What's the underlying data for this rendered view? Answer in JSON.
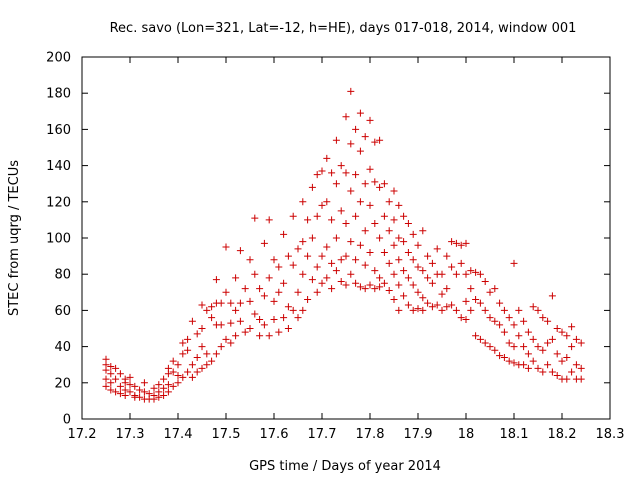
{
  "chart_data": {
    "type": "scatter",
    "title": "Rec. savo (Lon=321, Lat=-12, h=HE), days 017-018, 2014, window 001",
    "xlabel": "GPS time / Days of year 2014",
    "ylabel": "STEC from uqrg / TECUs",
    "xlim": [
      17.2,
      18.3
    ],
    "ylim": [
      0,
      200
    ],
    "xticks": [
      "17.2",
      "17.3",
      "17.4",
      "17.5",
      "17.6",
      "17.7",
      "17.8",
      "17.9",
      "18",
      "18.1",
      "18.2",
      "18.3"
    ],
    "yticks": [
      "0",
      "20",
      "40",
      "60",
      "80",
      "100",
      "120",
      "140",
      "160",
      "180",
      "200"
    ],
    "grid": false,
    "legend": "none",
    "marker": "+",
    "color": "#cc0000",
    "points": [
      [
        17.25,
        33
      ],
      [
        17.25,
        30
      ],
      [
        17.25,
        27
      ],
      [
        17.25,
        22
      ],
      [
        17.25,
        18
      ],
      [
        17.26,
        29
      ],
      [
        17.26,
        25
      ],
      [
        17.26,
        20
      ],
      [
        17.26,
        16
      ],
      [
        17.27,
        28
      ],
      [
        17.27,
        22
      ],
      [
        17.27,
        15
      ],
      [
        17.28,
        25
      ],
      [
        17.28,
        18
      ],
      [
        17.28,
        14
      ],
      [
        17.29,
        22
      ],
      [
        17.29,
        20
      ],
      [
        17.29,
        16
      ],
      [
        17.29,
        13
      ],
      [
        17.3,
        23
      ],
      [
        17.3,
        19
      ],
      [
        17.3,
        15
      ],
      [
        17.31,
        18
      ],
      [
        17.31,
        13
      ],
      [
        17.31,
        12
      ],
      [
        17.32,
        16
      ],
      [
        17.32,
        12
      ],
      [
        17.33,
        20
      ],
      [
        17.33,
        15
      ],
      [
        17.33,
        11
      ],
      [
        17.34,
        14
      ],
      [
        17.34,
        11
      ],
      [
        17.35,
        17
      ],
      [
        17.35,
        13
      ],
      [
        17.35,
        11
      ],
      [
        17.36,
        19
      ],
      [
        17.36,
        15
      ],
      [
        17.36,
        12
      ],
      [
        17.37,
        22
      ],
      [
        17.37,
        17
      ],
      [
        17.37,
        13
      ],
      [
        17.38,
        28
      ],
      [
        17.38,
        25
      ],
      [
        17.38,
        19
      ],
      [
        17.38,
        15
      ],
      [
        17.39,
        32
      ],
      [
        17.39,
        26
      ],
      [
        17.39,
        18
      ],
      [
        17.4,
        30
      ],
      [
        17.4,
        24
      ],
      [
        17.4,
        20
      ],
      [
        17.41,
        42
      ],
      [
        17.41,
        36
      ],
      [
        17.41,
        23
      ],
      [
        17.42,
        44
      ],
      [
        17.42,
        38
      ],
      [
        17.42,
        26
      ],
      [
        17.43,
        54
      ],
      [
        17.43,
        30
      ],
      [
        17.43,
        23
      ],
      [
        17.44,
        47
      ],
      [
        17.44,
        34
      ],
      [
        17.44,
        26
      ],
      [
        17.45,
        50
      ],
      [
        17.45,
        40
      ],
      [
        17.45,
        28
      ],
      [
        17.45,
        63
      ],
      [
        17.46,
        60
      ],
      [
        17.46,
        36
      ],
      [
        17.46,
        30
      ],
      [
        17.47,
        56
      ],
      [
        17.47,
        62
      ],
      [
        17.47,
        32
      ],
      [
        17.48,
        77
      ],
      [
        17.48,
        64
      ],
      [
        17.48,
        52
      ],
      [
        17.48,
        36
      ],
      [
        17.49,
        52
      ],
      [
        17.49,
        64
      ],
      [
        17.49,
        40
      ],
      [
        17.5,
        95
      ],
      [
        17.5,
        70
      ],
      [
        17.5,
        44
      ],
      [
        17.51,
        64
      ],
      [
        17.51,
        53
      ],
      [
        17.51,
        42
      ],
      [
        17.52,
        78
      ],
      [
        17.52,
        60
      ],
      [
        17.52,
        46
      ],
      [
        17.53,
        93
      ],
      [
        17.53,
        64
      ],
      [
        17.53,
        54
      ],
      [
        17.54,
        72
      ],
      [
        17.54,
        48
      ],
      [
        17.55,
        88
      ],
      [
        17.55,
        65
      ],
      [
        17.55,
        50
      ],
      [
        17.56,
        111
      ],
      [
        17.56,
        80
      ],
      [
        17.56,
        58
      ],
      [
        17.57,
        72
      ],
      [
        17.57,
        55
      ],
      [
        17.57,
        46
      ],
      [
        17.58,
        97
      ],
      [
        17.58,
        68
      ],
      [
        17.58,
        52
      ],
      [
        17.59,
        110
      ],
      [
        17.59,
        78
      ],
      [
        17.59,
        46
      ],
      [
        17.6,
        88
      ],
      [
        17.6,
        65
      ],
      [
        17.6,
        55
      ],
      [
        17.61,
        84
      ],
      [
        17.61,
        70
      ],
      [
        17.61,
        48
      ],
      [
        17.62,
        102
      ],
      [
        17.62,
        75
      ],
      [
        17.62,
        56
      ],
      [
        17.63,
        90
      ],
      [
        17.63,
        62
      ],
      [
        17.63,
        50
      ],
      [
        17.64,
        112
      ],
      [
        17.64,
        85
      ],
      [
        17.64,
        60
      ],
      [
        17.65,
        94
      ],
      [
        17.65,
        70
      ],
      [
        17.65,
        56
      ],
      [
        17.66,
        120
      ],
      [
        17.66,
        98
      ],
      [
        17.66,
        80
      ],
      [
        17.66,
        60
      ],
      [
        17.67,
        110
      ],
      [
        17.67,
        90
      ],
      [
        17.67,
        66
      ],
      [
        17.68,
        128
      ],
      [
        17.68,
        100
      ],
      [
        17.68,
        77
      ],
      [
        17.69,
        135
      ],
      [
        17.69,
        112
      ],
      [
        17.69,
        84
      ],
      [
        17.69,
        70
      ],
      [
        17.7,
        137
      ],
      [
        17.7,
        118
      ],
      [
        17.7,
        90
      ],
      [
        17.7,
        75
      ],
      [
        17.71,
        144
      ],
      [
        17.71,
        120
      ],
      [
        17.71,
        95
      ],
      [
        17.71,
        78
      ],
      [
        17.72,
        136
      ],
      [
        17.72,
        110
      ],
      [
        17.72,
        86
      ],
      [
        17.72,
        72
      ],
      [
        17.73,
        154
      ],
      [
        17.73,
        130
      ],
      [
        17.73,
        100
      ],
      [
        17.73,
        82
      ],
      [
        17.74,
        140
      ],
      [
        17.74,
        115
      ],
      [
        17.74,
        88
      ],
      [
        17.74,
        76
      ],
      [
        17.75,
        167
      ],
      [
        17.75,
        136
      ],
      [
        17.75,
        108
      ],
      [
        17.75,
        90
      ],
      [
        17.75,
        74
      ],
      [
        17.76,
        181
      ],
      [
        17.76,
        152
      ],
      [
        17.76,
        126
      ],
      [
        17.76,
        98
      ],
      [
        17.76,
        80
      ],
      [
        17.77,
        160
      ],
      [
        17.77,
        135
      ],
      [
        17.77,
        112
      ],
      [
        17.77,
        88
      ],
      [
        17.77,
        75
      ],
      [
        17.78,
        169
      ],
      [
        17.78,
        148
      ],
      [
        17.78,
        120
      ],
      [
        17.78,
        96
      ],
      [
        17.78,
        73
      ],
      [
        17.79,
        156
      ],
      [
        17.79,
        130
      ],
      [
        17.79,
        104
      ],
      [
        17.79,
        85
      ],
      [
        17.79,
        72
      ],
      [
        17.8,
        165
      ],
      [
        17.8,
        138
      ],
      [
        17.8,
        118
      ],
      [
        17.8,
        92
      ],
      [
        17.8,
        74
      ],
      [
        17.81,
        153
      ],
      [
        17.81,
        131
      ],
      [
        17.81,
        108
      ],
      [
        17.81,
        82
      ],
      [
        17.81,
        72
      ],
      [
        17.82,
        154
      ],
      [
        17.82,
        128
      ],
      [
        17.82,
        100
      ],
      [
        17.82,
        78
      ],
      [
        17.82,
        73
      ],
      [
        17.83,
        130
      ],
      [
        17.83,
        112
      ],
      [
        17.83,
        92
      ],
      [
        17.83,
        75
      ],
      [
        17.84,
        120
      ],
      [
        17.84,
        104
      ],
      [
        17.84,
        86
      ],
      [
        17.84,
        71
      ],
      [
        17.85,
        126
      ],
      [
        17.85,
        110
      ],
      [
        17.85,
        96
      ],
      [
        17.85,
        80
      ],
      [
        17.85,
        66
      ],
      [
        17.86,
        118
      ],
      [
        17.86,
        100
      ],
      [
        17.86,
        88
      ],
      [
        17.86,
        74
      ],
      [
        17.86,
        60
      ],
      [
        17.87,
        112
      ],
      [
        17.87,
        98
      ],
      [
        17.87,
        82
      ],
      [
        17.87,
        68
      ],
      [
        17.88,
        108
      ],
      [
        17.88,
        92
      ],
      [
        17.88,
        78
      ],
      [
        17.88,
        63
      ],
      [
        17.89,
        102
      ],
      [
        17.89,
        88
      ],
      [
        17.89,
        74
      ],
      [
        17.89,
        60
      ],
      [
        17.9,
        96
      ],
      [
        17.9,
        84
      ],
      [
        17.9,
        70
      ],
      [
        17.9,
        61
      ],
      [
        17.91,
        104
      ],
      [
        17.91,
        82
      ],
      [
        17.91,
        67
      ],
      [
        17.91,
        60
      ],
      [
        17.92,
        90
      ],
      [
        17.92,
        78
      ],
      [
        17.92,
        64
      ],
      [
        17.93,
        86
      ],
      [
        17.93,
        75
      ],
      [
        17.93,
        62
      ],
      [
        17.94,
        94
      ],
      [
        17.94,
        80
      ],
      [
        17.94,
        63
      ],
      [
        17.95,
        80
      ],
      [
        17.95,
        69
      ],
      [
        17.95,
        60
      ],
      [
        17.96,
        90
      ],
      [
        17.96,
        72
      ],
      [
        17.96,
        62
      ],
      [
        17.97,
        98
      ],
      [
        17.97,
        84
      ],
      [
        17.97,
        63
      ],
      [
        17.98,
        97
      ],
      [
        17.98,
        80
      ],
      [
        17.98,
        60
      ],
      [
        17.99,
        96
      ],
      [
        17.99,
        86
      ],
      [
        17.99,
        56
      ],
      [
        18.0,
        97
      ],
      [
        18.0,
        80
      ],
      [
        18.0,
        55
      ],
      [
        18.0,
        65
      ],
      [
        18.01,
        82
      ],
      [
        18.01,
        72
      ],
      [
        18.01,
        60
      ],
      [
        18.02,
        81
      ],
      [
        18.02,
        66
      ],
      [
        18.02,
        46
      ],
      [
        18.03,
        80
      ],
      [
        18.03,
        64
      ],
      [
        18.03,
        44
      ],
      [
        18.04,
        76
      ],
      [
        18.04,
        60
      ],
      [
        18.04,
        42
      ],
      [
        18.05,
        70
      ],
      [
        18.05,
        56
      ],
      [
        18.05,
        40
      ],
      [
        18.06,
        72
      ],
      [
        18.06,
        54
      ],
      [
        18.06,
        38
      ],
      [
        18.07,
        64
      ],
      [
        18.07,
        52
      ],
      [
        18.07,
        35
      ],
      [
        18.08,
        60
      ],
      [
        18.08,
        48
      ],
      [
        18.08,
        34
      ],
      [
        18.09,
        56
      ],
      [
        18.09,
        42
      ],
      [
        18.09,
        32
      ],
      [
        18.1,
        86
      ],
      [
        18.1,
        52
      ],
      [
        18.1,
        40
      ],
      [
        18.1,
        31
      ],
      [
        18.11,
        60
      ],
      [
        18.11,
        46
      ],
      [
        18.11,
        30
      ],
      [
        18.12,
        54
      ],
      [
        18.12,
        40
      ],
      [
        18.12,
        30
      ],
      [
        18.13,
        48
      ],
      [
        18.13,
        36
      ],
      [
        18.13,
        28
      ],
      [
        18.14,
        62
      ],
      [
        18.14,
        44
      ],
      [
        18.14,
        32
      ],
      [
        18.15,
        60
      ],
      [
        18.15,
        40
      ],
      [
        18.15,
        28
      ],
      [
        18.16,
        56
      ],
      [
        18.16,
        38
      ],
      [
        18.16,
        26
      ],
      [
        18.17,
        54
      ],
      [
        18.17,
        42
      ],
      [
        18.17,
        30
      ],
      [
        18.18,
        68
      ],
      [
        18.18,
        44
      ],
      [
        18.18,
        26
      ],
      [
        18.19,
        50
      ],
      [
        18.19,
        36
      ],
      [
        18.19,
        24
      ],
      [
        18.2,
        48
      ],
      [
        18.2,
        32
      ],
      [
        18.2,
        22
      ],
      [
        18.21,
        46
      ],
      [
        18.21,
        34
      ],
      [
        18.21,
        22
      ],
      [
        18.22,
        51
      ],
      [
        18.22,
        40
      ],
      [
        18.22,
        26
      ],
      [
        18.23,
        44
      ],
      [
        18.23,
        30
      ],
      [
        18.23,
        22
      ],
      [
        18.24,
        42
      ],
      [
        18.24,
        28
      ],
      [
        18.24,
        22
      ]
    ]
  }
}
